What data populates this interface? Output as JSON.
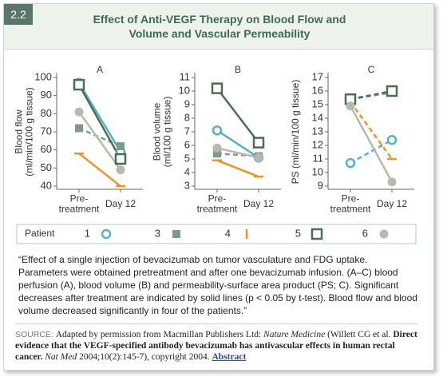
{
  "figure_number": "2.2",
  "title": "Effect of Anti-VEGF Therapy on Blood Flow and\nVolume and Vascular Permeability",
  "chart_data": [
    {
      "type": "line",
      "title": "A",
      "ylabel": "Blood flow\n(ml/min/100 g tissue)",
      "categories": [
        "Pre-\ntreatment",
        "Day 12"
      ],
      "ylim": [
        40,
        100
      ],
      "yticks": [
        40,
        50,
        60,
        70,
        80,
        90,
        100
      ],
      "series": [
        {
          "name": "1",
          "color": "#5ab0c0",
          "marker": "open-circle",
          "dash": false,
          "values": [
            97,
            59
          ]
        },
        {
          "name": "3",
          "color": "#7f9a8a",
          "marker": "square",
          "dash": true,
          "values": [
            72,
            62
          ]
        },
        {
          "name": "4",
          "color": "#e8952a",
          "marker": "cap",
          "dash": false,
          "values": [
            58,
            40
          ]
        },
        {
          "name": "5",
          "color": "#4a6e55",
          "marker": "open-square",
          "dash": false,
          "values": [
            96,
            55
          ]
        },
        {
          "name": "6",
          "color": "#b8b8ae",
          "marker": "circle",
          "dash": false,
          "values": [
            81,
            49
          ]
        }
      ]
    },
    {
      "type": "line",
      "title": "B",
      "ylabel": "Blood volume\n(ml/100 g tissue)",
      "categories": [
        "Pre-\ntreatment",
        "Day 12"
      ],
      "ylim": [
        3,
        11
      ],
      "yticks": [
        3,
        4,
        5,
        6,
        7,
        8,
        9,
        10,
        11
      ],
      "series": [
        {
          "color": "#5ab0c0",
          "marker": "open-circle",
          "dash": false,
          "values": [
            7.1,
            5.1
          ]
        },
        {
          "color": "#7f9a8a",
          "marker": "square",
          "dash": true,
          "values": [
            5.4,
            5.2
          ]
        },
        {
          "color": "#e8952a",
          "marker": "cap",
          "dash": false,
          "values": [
            4.9,
            3.7
          ]
        },
        {
          "color": "#4a6e55",
          "marker": "open-square",
          "dash": false,
          "values": [
            10.2,
            6.2
          ]
        },
        {
          "color": "#b8b8ae",
          "marker": "circle",
          "dash": false,
          "values": [
            5.8,
            5.1
          ]
        }
      ]
    },
    {
      "type": "line",
      "title": "C",
      "ylabel": "PS (ml/min/100 g tissue)",
      "categories": [
        "Pre-\ntreatment",
        "Day 12"
      ],
      "ylim": [
        9,
        17
      ],
      "yticks": [
        9,
        10,
        11,
        12,
        13,
        14,
        15,
        16,
        17
      ],
      "series": [
        {
          "color": "#5ab0c0",
          "marker": "open-circle",
          "dash": true,
          "values": [
            10.7,
            12.4
          ]
        },
        {
          "color": "#7f9a8a",
          "marker": "square",
          "dash": true,
          "values": [
            15.4,
            15.9
          ]
        },
        {
          "color": "#e8952a",
          "marker": "cap",
          "dash": true,
          "values": [
            15.2,
            11
          ]
        },
        {
          "color": "#4a6e55",
          "marker": "open-square",
          "dash": true,
          "values": [
            15.4,
            16
          ]
        },
        {
          "color": "#b8b8ae",
          "marker": "circle",
          "dash": false,
          "values": [
            14.9,
            9.3
          ]
        }
      ]
    }
  ],
  "legend_title": "Patient",
  "caption": "“Effect of a single injection of bevacizumab on tumor vasculature and FDG uptake. Parameters were obtained pretreatment and after one bevacizumab infusion. (A–C) blood perfusion (A), blood volume (B) and permeability-surface area product (PS; C). Significant decreases after treatment are indicated by solid lines (p < 0.05 by t-test). Blood flow and blood volume decreased significantly in four of the patients.”",
  "source": {
    "label": "SOURCE:",
    "parts": [
      {
        "text": "Adapted by permission from Macmillan Publishers Ltd: ",
        "style": "normal"
      },
      {
        "text": "Nature Medicine",
        "style": "italic"
      },
      {
        "text": " (Willett CG et al. ",
        "style": "normal"
      },
      {
        "text": "Direct evidence that the VEGF-specified antibody bevacizumab has antivascular effects in human rectal cancer.",
        "style": "bold"
      },
      {
        "text": " ",
        "style": "normal"
      },
      {
        "text": "Nat Med",
        "style": "italic"
      },
      {
        "text": " 2004;10(2):145-7), copyright 2004. ",
        "style": "normal"
      },
      {
        "text": "Abstract",
        "style": "link"
      }
    ]
  }
}
